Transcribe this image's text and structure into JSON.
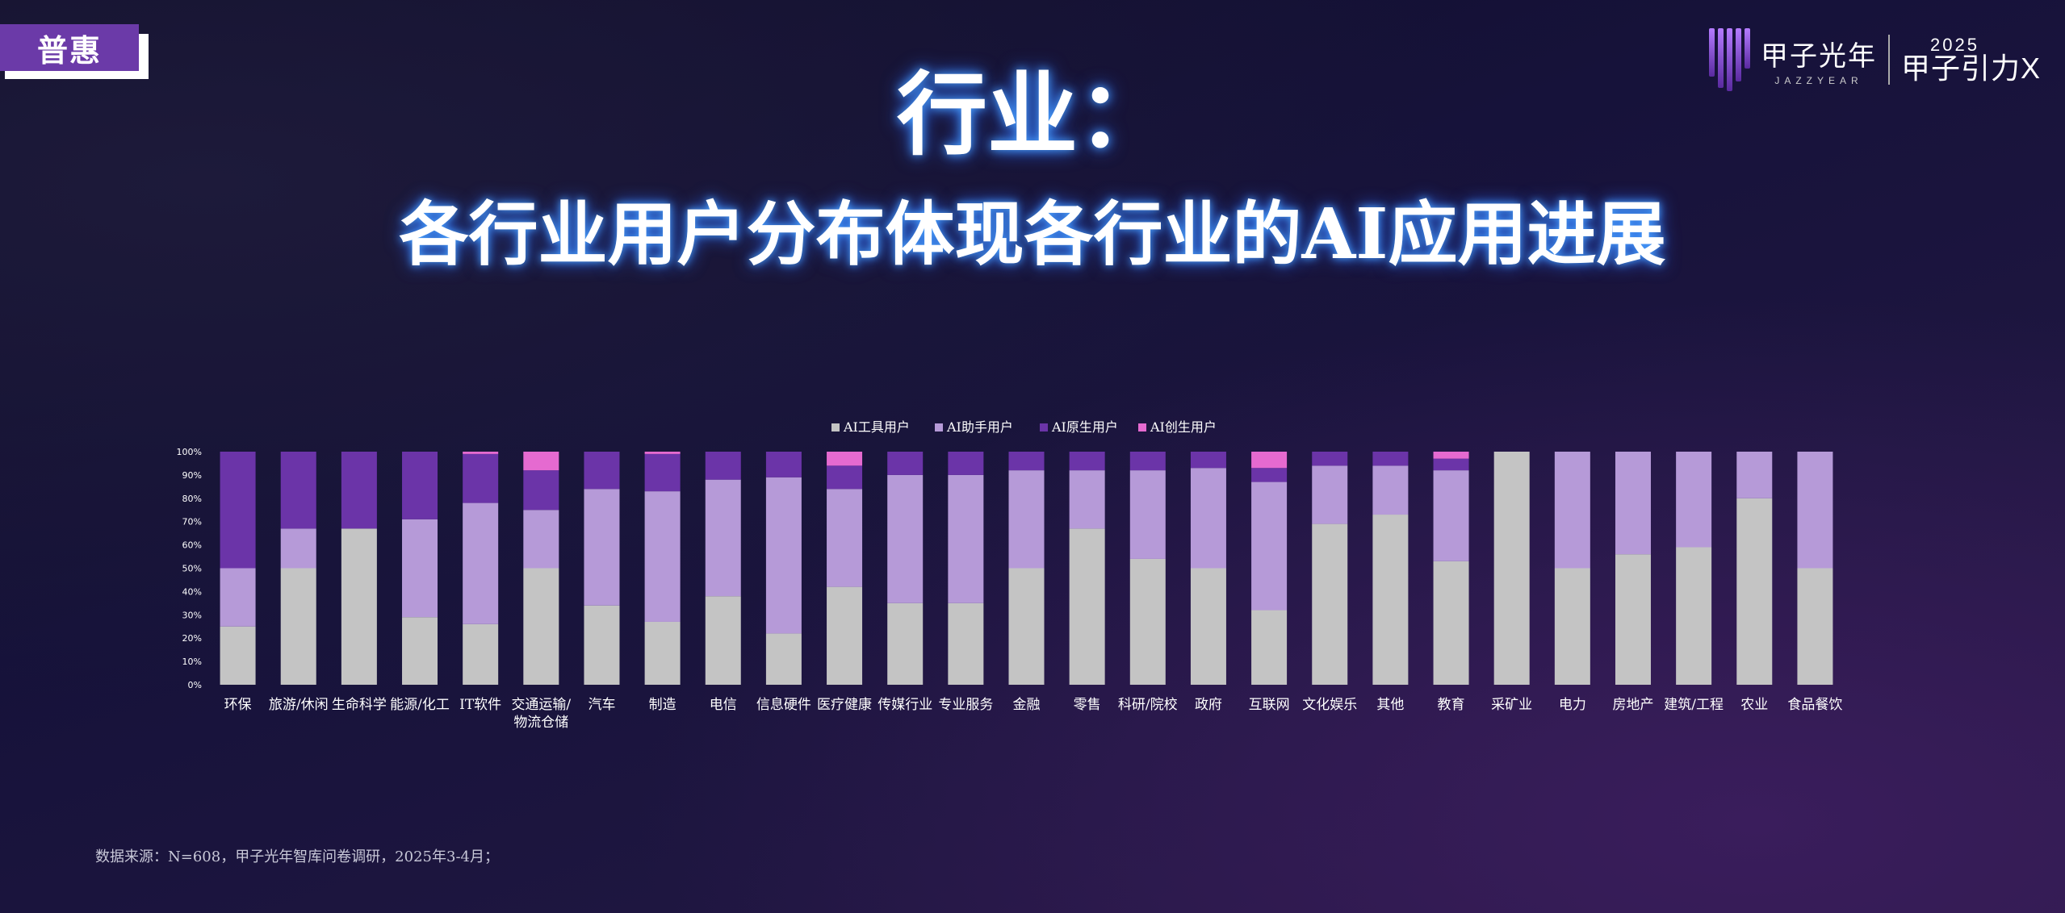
{
  "tag": {
    "label": "普惠"
  },
  "logo": {
    "brand_cn": "甲子光年",
    "brand_en": "JAZZYEAR",
    "event_year": "2025",
    "event_name": "甲子引力X"
  },
  "header": {
    "title": "行业：",
    "subtitle": "各行业用户分布体现各行业的AI应用进展"
  },
  "source": "数据来源：N=608，甲子光年智库问卷调研，2025年3-4月；",
  "colors": {
    "tool": "#c4c4c4",
    "assistant": "#b69ad8",
    "native": "#6b34a8",
    "creator": "#e56ad0"
  },
  "chart_data": {
    "type": "bar",
    "stacked": true,
    "legend_position": "top-center",
    "ylim": [
      0,
      100
    ],
    "yticks": [
      "0%",
      "10%",
      "20%",
      "30%",
      "40%",
      "50%",
      "60%",
      "70%",
      "80%",
      "90%",
      "100%"
    ],
    "categories": [
      "环保",
      "旅游/休闲",
      "生命科学",
      "能源/化工",
      "IT软件",
      "交通运输/物流仓储",
      "汽车",
      "制造",
      "电信",
      "信息硬件",
      "医疗健康",
      "传媒行业",
      "专业服务",
      "金融",
      "零售",
      "科研/院校",
      "政府",
      "互联网",
      "文化娱乐",
      "其他",
      "教育",
      "采矿业",
      "电力",
      "房地产",
      "建筑/工程",
      "农业",
      "食品餐饮"
    ],
    "series": [
      {
        "name": "AI工具用户",
        "values": [
          25,
          50,
          67,
          29,
          26,
          50,
          34,
          27,
          38,
          22,
          42,
          35,
          35,
          50,
          67,
          54,
          50,
          32,
          69,
          73,
          53,
          100,
          50,
          56,
          59,
          80,
          50
        ]
      },
      {
        "name": "AI助手用户",
        "values": [
          25,
          17,
          0,
          42,
          52,
          25,
          50,
          56,
          50,
          67,
          42,
          55,
          55,
          42,
          25,
          38,
          43,
          55,
          25,
          21,
          39,
          0,
          50,
          44,
          41,
          20,
          50
        ]
      },
      {
        "name": "AI原生用户",
        "values": [
          50,
          33,
          33,
          29,
          21,
          17,
          16,
          16,
          12,
          11,
          10,
          10,
          10,
          8,
          8,
          8,
          7,
          6,
          6,
          6,
          5,
          0,
          0,
          0,
          0,
          0,
          0
        ]
      },
      {
        "name": "AI创生用户",
        "values": [
          0,
          0,
          0,
          0,
          1,
          8,
          0,
          1,
          0,
          0,
          6,
          0,
          0,
          0,
          0,
          0,
          0,
          7,
          0,
          0,
          3,
          0,
          0,
          0,
          0,
          0,
          0
        ]
      }
    ]
  }
}
